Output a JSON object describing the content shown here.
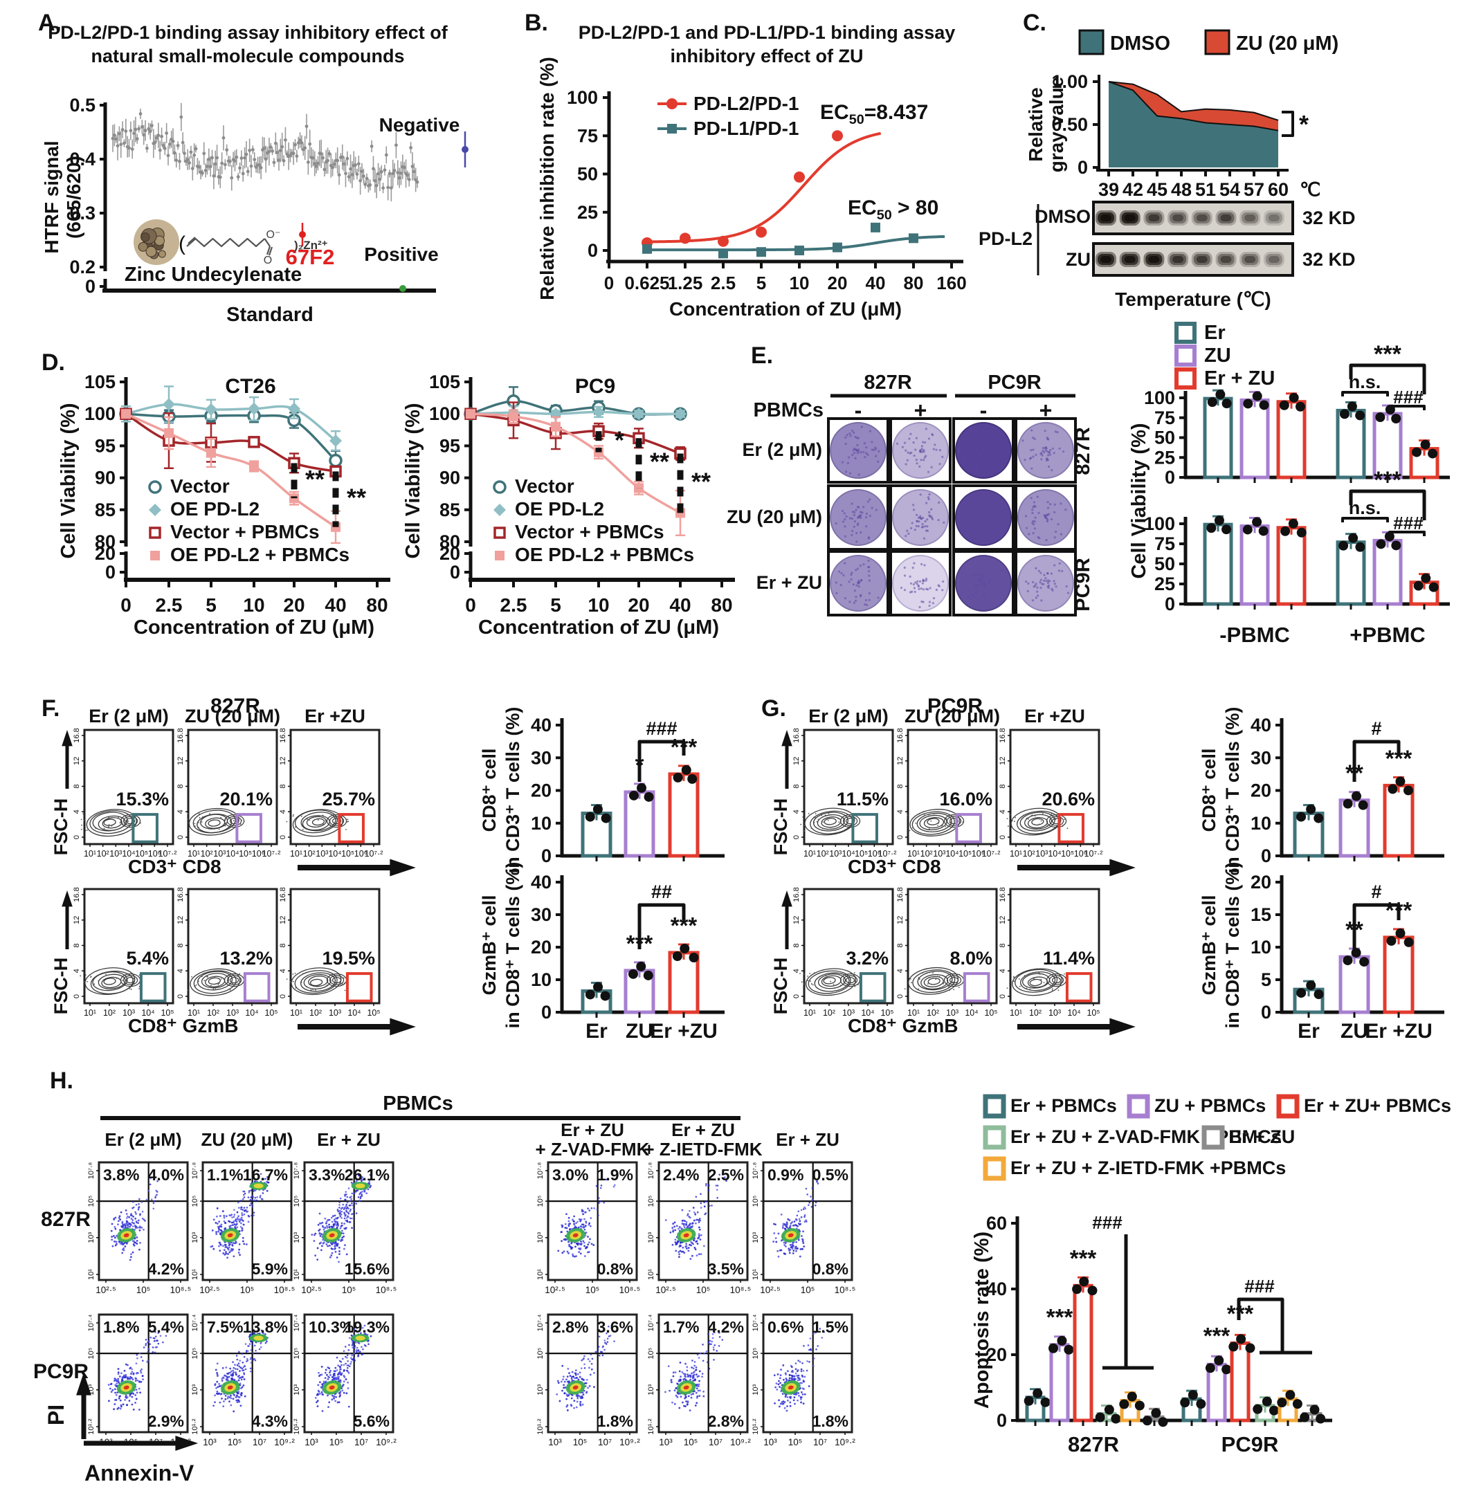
{
  "colors": {
    "teal": "#3f7379",
    "light_teal": "#8fbfc4",
    "dark_red": "#a3262a",
    "pink": "#f0a09d",
    "purple": "#a77fd0",
    "red": "#e23b2e",
    "green": "#8fbc9b",
    "orange": "#f2a93b",
    "gray": "#8c8c8c",
    "negative": "#4848aa",
    "positive": "#3a9a3a",
    "hit_red": "#e02020",
    "dmso_area": "#3f7379",
    "zu_area": "#d84a33",
    "well_purple": "#4a3590",
    "dot_blue": "#2b2bd0"
  },
  "panels": {
    "A": {
      "label": "A.",
      "title1": "PD-L2/PD-1 binding assay inhibitory effect of",
      "title2": "natural small-molecule compounds",
      "ylabel1": "HTRF signal",
      "ylabel2": "(665/620)",
      "xlabel": "Standard",
      "yticks": [
        "0.5",
        "0.4",
        "0.3",
        "0.2",
        "0"
      ],
      "negative_label": "Negative",
      "positive_label": "Positive",
      "hit_label": "67F2",
      "compound_label": "Zinc Undecylenate",
      "zinc_suffix": ")₂Zn²⁺"
    },
    "B": {
      "label": "B.",
      "title1": "PD-L2/PD-1  and PD-L1/PD-1 binding assay",
      "title2": "inhibitory effect of ZU",
      "ylabel": "Relative inhibition rate (%)",
      "xlabel": "Concentration of ZU (μM)",
      "yticks": [
        "100",
        "75",
        "50",
        "25",
        "0"
      ],
      "xticks": [
        "0",
        "0.625",
        "1.25",
        "2.5",
        "5",
        "10",
        "20",
        "40",
        "80",
        "160"
      ],
      "legend": [
        "PD-L2/PD-1",
        "PD-L1/PD-1"
      ],
      "ec50_pdl2": "EC₅₀=8.437",
      "ec50_pdl1": "EC₅₀ > 80"
    },
    "C": {
      "label": "C.",
      "legend": [
        "DMSO",
        "ZU (20 μM)"
      ],
      "ylabel1": "Relative",
      "ylabel2": "gray value",
      "yticks": [
        "1.00",
        "0.50",
        "0"
      ],
      "xticks": [
        "39",
        "42",
        "45",
        "48",
        "51",
        "54",
        "57",
        "60"
      ],
      "x_unit": "℃",
      "sig": "*",
      "protein": "PD-L2",
      "blot_rows": [
        "DMSO",
        "ZU"
      ],
      "kd": "32 KD",
      "xlabel": "Temperature (℃)"
    },
    "D": {
      "label": "D.",
      "titles": [
        "CT26",
        "PC9"
      ],
      "ylabel": "Cell Viability (%)",
      "xlabel": "Concentration of ZU (μM)",
      "yticks": [
        "105",
        "100",
        "95",
        "90",
        "85",
        "80",
        "20",
        "0"
      ],
      "xticks": [
        "0",
        "2.5",
        "5",
        "10",
        "20",
        "40",
        "80"
      ],
      "legend": [
        "Vector",
        "OE PD-L2",
        "Vector + PBMCs",
        "OE PD-L2 + PBMCs"
      ]
    },
    "E": {
      "label": "E.",
      "groups": [
        "827R",
        "PC9R"
      ],
      "pbmc": "PBMCs",
      "signs": [
        "-",
        "+",
        "-",
        "+"
      ],
      "rows": [
        "Er (2 μM)",
        "ZU (20 μM)",
        "Er + ZU"
      ],
      "side": [
        "827R",
        "PC9R"
      ],
      "legend": [
        "Er",
        "ZU",
        "Er + ZU"
      ],
      "ylabel": "Cell Viability (%)",
      "yticks": [
        "100",
        "75",
        "50",
        "25",
        "0"
      ],
      "xgroups": [
        "-PBMC",
        "+PBMC"
      ],
      "sig": {
        "stars": "***",
        "ns": "n.s.",
        "hash": "###"
      }
    },
    "F": {
      "label": "F.",
      "title": "827R",
      "conditions": [
        "Er (2 μM)",
        "ZU (20 μM)",
        "Er +ZU"
      ],
      "fsch": "FSC-H",
      "row1_x": "CD3⁺ CD8",
      "row2_x": "CD8⁺ GzmB",
      "row1_pct": [
        "15.3%",
        "20.1%",
        "25.7%"
      ],
      "row2_pct": [
        "5.4%",
        "13.2%",
        "19.5%"
      ],
      "flow_yticks": [
        "16.8",
        "12",
        "8",
        "4",
        "0"
      ],
      "row1_xticks": [
        "10¹",
        "10²",
        "10³",
        "10⁴",
        "10⁵",
        "10⁶",
        "10⁷·²"
      ],
      "row2_xticks": [
        "10¹",
        "10²",
        "10³",
        "10⁴",
        "10⁵"
      ],
      "bar1_ylabel1": "CD8⁺ cell",
      "bar1_ylabel2": "in CD3⁺ T cells (%)",
      "bar2_ylabel1": "GzmB⁺ cell",
      "bar2_ylabel2": "in CD8⁺ T cells (%)",
      "cats": [
        "Er",
        "ZU",
        "Er +ZU"
      ]
    },
    "G": {
      "label": "G.",
      "title": "PC9R",
      "conditions": [
        "Er (2 μM)",
        "ZU (20 μM)",
        "Er +ZU"
      ],
      "fsch": "FSC-H",
      "row1_x": "CD3⁺ CD8",
      "row2_x": "CD8⁺ GzmB",
      "row1_pct": [
        "11.5%",
        "16.0%",
        "20.6%"
      ],
      "row2_pct": [
        "3.2%",
        "8.0%",
        "11.4%"
      ],
      "flow_yticks": [
        "16.8",
        "12",
        "8",
        "4",
        "0"
      ],
      "row1_xticks": [
        "10¹",
        "10²",
        "10³",
        "10⁴",
        "10⁵",
        "10⁶",
        "10⁷·²"
      ],
      "row2_xticks": [
        "10¹",
        "10²",
        "10³",
        "10⁴",
        "10⁵"
      ],
      "bar1_ylabel1": "CD8⁺ cell",
      "bar1_ylabel2": "in CD3⁺ T cells (%)",
      "bar2_ylabel1": "GzmB⁺ cell",
      "bar2_ylabel2": "in CD8⁺ T cells (%)",
      "cats": [
        "Er",
        "ZU",
        "Er +ZU"
      ]
    },
    "H": {
      "label": "H.",
      "header": "PBMCs",
      "conditions": [
        [
          "Er (2 μM)"
        ],
        [
          "ZU (20 μM)"
        ],
        [
          "Er + ZU"
        ],
        [
          "Er + ZU",
          "+ Z-VAD-FMK"
        ],
        [
          "Er + ZU",
          "+ Z-IETD-FMK"
        ],
        [
          "Er + ZU"
        ]
      ],
      "rows": [
        "827R",
        "PC9R"
      ],
      "pi": "PI",
      "annexin": "Annexin-V",
      "legend": [
        "Er + PBMCs",
        "ZU + PBMCs",
        "Er + ZU+ PBMCs",
        "Er + ZU + Z-VAD-FMK +PBMCs",
        "Er + ZU",
        "Er + ZU + Z-IETD-FMK +PBMCs"
      ],
      "ylabel": "Apoptosis rate (%)",
      "yticks": [
        "0",
        "20",
        "40",
        "60"
      ],
      "xgroups": [
        "827R",
        "PC9R"
      ],
      "sig": {
        "stars": "***",
        "hash": "###"
      },
      "row1_yticks": [
        "10⁷·⁸",
        "10⁵",
        "10³",
        "10¹"
      ],
      "row1_xticks": [
        "10²·⁵",
        "10⁵",
        "10⁸·⁵"
      ],
      "row2_yticks": [
        "10⁷·⁴",
        "10⁵",
        "10³",
        "10¹·²"
      ],
      "row2_xticks": [
        "10³",
        "10⁵",
        "10⁷",
        "10⁹·²"
      ]
    }
  },
  "chart_data": [
    {
      "id": "A",
      "type": "scatter",
      "title": "PD-L2/PD-1 binding assay inhibitory effect of natural small-molecule compounds",
      "xlabel": "Standard",
      "ylabel": "HTRF signal (665/620)",
      "ylim": [
        0.2,
        0.5
      ],
      "yticks": [
        0,
        0.2,
        0.3,
        0.4,
        0.5
      ],
      "summary": "~190 screened natural compounds, HTRF ratio 0.30–0.48 drifting downward",
      "annotations": [
        {
          "label": "Negative",
          "value": 0.452
        },
        {
          "label": "67F2",
          "value": 0.3
        },
        {
          "label": "Positive",
          "value": 0.005
        }
      ],
      "hit_compound": "Zinc Undecylenate"
    },
    {
      "id": "B",
      "type": "line",
      "title": "PD-L2/PD-1 and PD-L1/PD-1 binding assay inhibitory effect of ZU",
      "xlabel": "Concentration of ZU (μM)",
      "ylabel": "Relative inhibition rate (%)",
      "ylim": [
        0,
        100
      ],
      "xticklabels": [
        "0",
        "0.625",
        "1.25",
        "2.5",
        "5",
        "10",
        "20",
        "40",
        "80",
        "160"
      ],
      "series": [
        {
          "name": "PD-L2/PD-1",
          "x": [
            0.625,
            1.25,
            2.5,
            5,
            10,
            20
          ],
          "values": [
            5,
            8,
            6,
            12,
            48,
            75
          ],
          "ec50": 8.437
        },
        {
          "name": "PD-L1/PD-1",
          "x": [
            0.625,
            2.5,
            5,
            10,
            20,
            40,
            80
          ],
          "values": [
            1,
            -2,
            -1,
            0,
            2,
            15,
            8
          ],
          "ec50": ">80"
        }
      ]
    },
    {
      "id": "C",
      "type": "area",
      "ylabel": "Relative gray value",
      "categories": [
        39,
        42,
        45,
        48,
        51,
        54,
        57,
        60
      ],
      "x_unit": "°C",
      "series": [
        {
          "name": "DMSO",
          "values": [
            1.0,
            0.9,
            0.6,
            0.57,
            0.52,
            0.5,
            0.48,
            0.43
          ]
        },
        {
          "name": "ZU (20 uM)",
          "values": [
            1.0,
            0.97,
            0.85,
            0.65,
            0.68,
            0.67,
            0.64,
            0.55
          ]
        }
      ],
      "significance": "*",
      "blot": {
        "protein": "PD-L2",
        "rows": [
          "DMSO",
          "ZU"
        ],
        "band_kd": "32 KD",
        "lanes": 8
      }
    },
    {
      "id": "D_CT26",
      "type": "line",
      "title": "CT26",
      "xlabel": "Concentration of ZU (μM)",
      "ylabel": "Cell Viability (%)",
      "x": [
        0,
        2.5,
        5,
        10,
        20,
        40
      ],
      "series": [
        {
          "name": "Vector",
          "values": [
            100,
            99.6,
            99.7,
            99.7,
            99,
            92.7
          ]
        },
        {
          "name": "OE PD-L2",
          "values": [
            100,
            101.5,
            100.7,
            100.8,
            100.8,
            95.8
          ]
        },
        {
          "name": "Vector + PBMCs",
          "values": [
            100,
            95.8,
            95.5,
            95.6,
            92.3,
            91
          ]
        },
        {
          "name": "OE PD-L2 + PBMCs",
          "values": [
            100,
            97,
            93.9,
            91.8,
            86.8,
            82.3
          ]
        }
      ],
      "significance": [
        {
          "x": 20,
          "label": "**"
        },
        {
          "x": 40,
          "label": "**"
        }
      ]
    },
    {
      "id": "D_PC9",
      "type": "line",
      "title": "PC9",
      "xlabel": "Concentration of ZU (μM)",
      "ylabel": "Cell Viability (%)",
      "x": [
        0,
        2.5,
        5,
        10,
        20,
        40
      ],
      "series": [
        {
          "name": "Vector",
          "values": [
            100,
            102,
            100.5,
            101,
            100,
            100
          ]
        },
        {
          "name": "OE PD-L2",
          "values": [
            100,
            100.2,
            100,
            100.3,
            100,
            100
          ]
        },
        {
          "name": "Vector + PBMCs",
          "values": [
            100,
            99,
            97,
            97.3,
            96.2,
            93.8
          ]
        },
        {
          "name": "OE PD-L2 + PBMCs",
          "values": [
            100,
            99.6,
            98,
            94,
            88.4,
            84.5
          ]
        }
      ],
      "significance": [
        {
          "x": 10,
          "label": "*"
        },
        {
          "x": 20,
          "label": "**"
        },
        {
          "x": 40,
          "label": "**"
        }
      ]
    },
    {
      "id": "E_827R",
      "type": "bar",
      "ylabel": "Cell Viability (%)",
      "groups": [
        "-PBMC",
        "+PBMC"
      ],
      "series": [
        {
          "name": "Er",
          "values": [
            99,
            84
          ]
        },
        {
          "name": "ZU",
          "values": [
            97,
            80
          ]
        },
        {
          "name": "Er + ZU",
          "values": [
            95,
            36
          ]
        }
      ],
      "significance": [
        "***",
        "n.s.",
        "###"
      ]
    },
    {
      "id": "E_PC9R",
      "type": "bar",
      "ylabel": "Cell Viability (%)",
      "groups": [
        "-PBMC",
        "+PBMC"
      ],
      "series": [
        {
          "name": "Er",
          "values": [
            99,
            77
          ]
        },
        {
          "name": "ZU",
          "values": [
            97,
            79
          ]
        },
        {
          "name": "Er + ZU",
          "values": [
            95,
            27
          ]
        }
      ],
      "significance": [
        "***",
        "n.s.",
        "###"
      ]
    },
    {
      "id": "F_CD8",
      "type": "bar",
      "ylabel": "CD8+ cell in CD3+ T cells (%)",
      "ylim": [
        0,
        40
      ],
      "categories": [
        "Er",
        "ZU",
        "Er +ZU"
      ],
      "values": [
        13,
        19.5,
        25
      ],
      "sig_above": [
        "",
        "*",
        "***"
      ],
      "bracket": "###"
    },
    {
      "id": "F_GzmB",
      "type": "bar",
      "ylabel": "GzmB+ cell in CD8+ T cells (%)",
      "ylim": [
        0,
        40
      ],
      "categories": [
        "Er",
        "ZU",
        "Er +ZU"
      ],
      "values": [
        6.5,
        12.8,
        18.3
      ],
      "sig_above": [
        "",
        "***",
        "***"
      ],
      "bracket": "##"
    },
    {
      "id": "G_CD8",
      "type": "bar",
      "ylabel": "CD8+ cell in CD3+ T cells (%)",
      "ylim": [
        0,
        40
      ],
      "categories": [
        "Er",
        "ZU",
        "Er +ZU"
      ],
      "values": [
        13,
        17,
        21.5
      ],
      "sig_above": [
        "",
        "**",
        "***"
      ],
      "bracket": "#"
    },
    {
      "id": "G_GzmB",
      "type": "bar",
      "ylabel": "GzmB+ cell in CD8+ T cells (%)",
      "ylim": [
        0,
        20
      ],
      "categories": [
        "Er",
        "ZU",
        "Er +ZU"
      ],
      "values": [
        3.5,
        8.5,
        11.5
      ],
      "sig_above": [
        "",
        "**",
        "***"
      ],
      "bracket": "#"
    },
    {
      "id": "F_flow",
      "type": "table",
      "cell_line": "827R",
      "conditions": [
        "Er (2 uM)",
        "ZU (20 uM)",
        "Er +ZU"
      ],
      "CD3_CD8_gate_pct": [
        15.3,
        20.1,
        25.7
      ],
      "CD8_GzmB_gate_pct": [
        5.4,
        13.2,
        19.5
      ]
    },
    {
      "id": "G_flow",
      "type": "table",
      "cell_line": "PC9R",
      "conditions": [
        "Er (2 uM)",
        "ZU (20 uM)",
        "Er +ZU"
      ],
      "CD3_CD8_gate_pct": [
        11.5,
        16.0,
        20.6
      ],
      "CD8_GzmB_gate_pct": [
        3.2,
        8.0,
        11.4
      ]
    },
    {
      "id": "H_flow",
      "type": "table",
      "xlabel": "Annexin-V",
      "ylabel": "PI",
      "conditions": [
        "Er (2 uM)",
        "ZU (20 uM)",
        "Er + ZU",
        "Er + ZU + Z-VAD-FMK",
        "Er + ZU + Z-IETD-FMK",
        "Er + ZU (no PBMC)"
      ],
      "quadrants_827R": [
        [
          3.8,
          4.0,
          4.2
        ],
        [
          1.1,
          16.7,
          5.9
        ],
        [
          3.3,
          26.1,
          15.6
        ],
        [
          3.0,
          1.9,
          0.8
        ],
        [
          2.4,
          2.5,
          3.5
        ],
        [
          0.9,
          0.5,
          0.8
        ]
      ],
      "quadrants_PC9R": [
        [
          1.8,
          5.4,
          2.9
        ],
        [
          7.5,
          13.8,
          4.3
        ],
        [
          10.3,
          19.3,
          5.6
        ],
        [
          2.8,
          3.6,
          1.8
        ],
        [
          1.7,
          4.2,
          2.8
        ],
        [
          0.6,
          1.5,
          1.8
        ]
      ],
      "quadrant_order": [
        "upper-left",
        "upper-right",
        "lower-right"
      ]
    },
    {
      "id": "H_apoptosis",
      "type": "bar",
      "ylabel": "Apoptosis rate (%)",
      "ylim": [
        0,
        60
      ],
      "groups": [
        "827R",
        "PC9R"
      ],
      "series": [
        {
          "name": "Er + PBMCs",
          "values": [
            7,
            6.5
          ]
        },
        {
          "name": "ZU + PBMCs",
          "values": [
            23,
            17
          ]
        },
        {
          "name": "Er + ZU+ PBMCs",
          "values": [
            41,
            23.5
          ]
        },
        {
          "name": "Er + ZU + Z-VAD-FMK +PBMCs",
          "values": [
            2,
            4.5
          ]
        },
        {
          "name": "Er + ZU + Z-IETD-FMK +PBMCs",
          "values": [
            6,
            6.5
          ]
        },
        {
          "name": "Er + ZU",
          "values": [
            1,
            2
          ]
        }
      ],
      "significance": {
        "ZU + PBMCs": "***",
        "Er + ZU+ PBMCs": "***",
        "brackets": "###"
      }
    },
    {
      "id": "E_wells",
      "type": "table",
      "rows": [
        "Er (2 uM)",
        "ZU (20 uM)",
        "Er + ZU"
      ],
      "columns": [
        "827R -PBMC",
        "827R +PBMC",
        "PC9R -PBMC",
        "PC9R +PBMC"
      ],
      "stain_intensity": [
        [
          0.55,
          0.3,
          0.93,
          0.45
        ],
        [
          0.52,
          0.33,
          0.9,
          0.5
        ],
        [
          0.5,
          0.12,
          0.85,
          0.38
        ]
      ]
    }
  ]
}
